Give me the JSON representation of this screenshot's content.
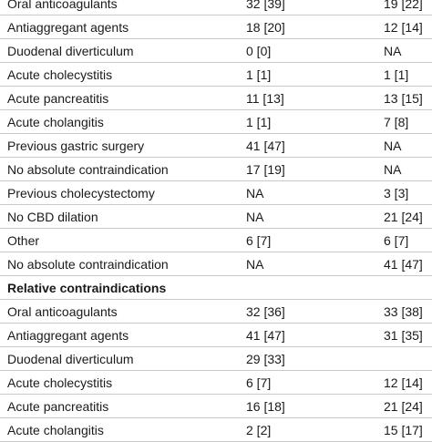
{
  "rows": [
    {
      "label": "Oral anticoagulants",
      "a": "32 [39]",
      "b": "19 [22]"
    },
    {
      "label": "Antiaggregant agents",
      "a": "18 [20]",
      "b": "12 [14]"
    },
    {
      "label": "Duodenal diverticulum",
      "a": "0 [0]",
      "b": "NA"
    },
    {
      "label": "Acute cholecystitis",
      "a": "1 [1]",
      "b": "1 [1]"
    },
    {
      "label": "Acute pancreatitis",
      "a": "11 [13]",
      "b": "13 [15]"
    },
    {
      "label": "Acute cholangitis",
      "a": "1 [1]",
      "b": "7 [8]"
    },
    {
      "label": "Previous gastric surgery",
      "a": "41 [47]",
      "b": "NA"
    },
    {
      "label": "No absolute contraindication",
      "a": "17 [19]",
      "b": "NA"
    },
    {
      "label": "Previous cholecystectomy",
      "a": "NA",
      "b": "3 [3]"
    },
    {
      "label": "No CBD dilation",
      "a": "NA",
      "b": "21 [24]"
    },
    {
      "label": "Other",
      "a": "6 [7]",
      "b": "6 [7]"
    },
    {
      "label": "No absolute contraindication",
      "a": "NA",
      "b": "41 [47]"
    }
  ],
  "section_title": "Relative contraindications",
  "relative_rows": [
    {
      "label": "Oral anticoagulants",
      "a": "32 [36]",
      "b": "33 [38]"
    },
    {
      "label": "Antiaggregant agents",
      "a": "41 [47]",
      "b": "31 [35]"
    },
    {
      "label": "Duodenal diverticulum",
      "a": "29 [33]",
      "b": ""
    },
    {
      "label": "Acute cholecystitis",
      "a": "6 [7]",
      "b": "12 [14]"
    },
    {
      "label": "Acute pancreatitis",
      "a": "16 [18]",
      "b": "21 [24]"
    },
    {
      "label": "Acute cholangitis",
      "a": "2 [2]",
      "b": "15 [17]"
    }
  ]
}
